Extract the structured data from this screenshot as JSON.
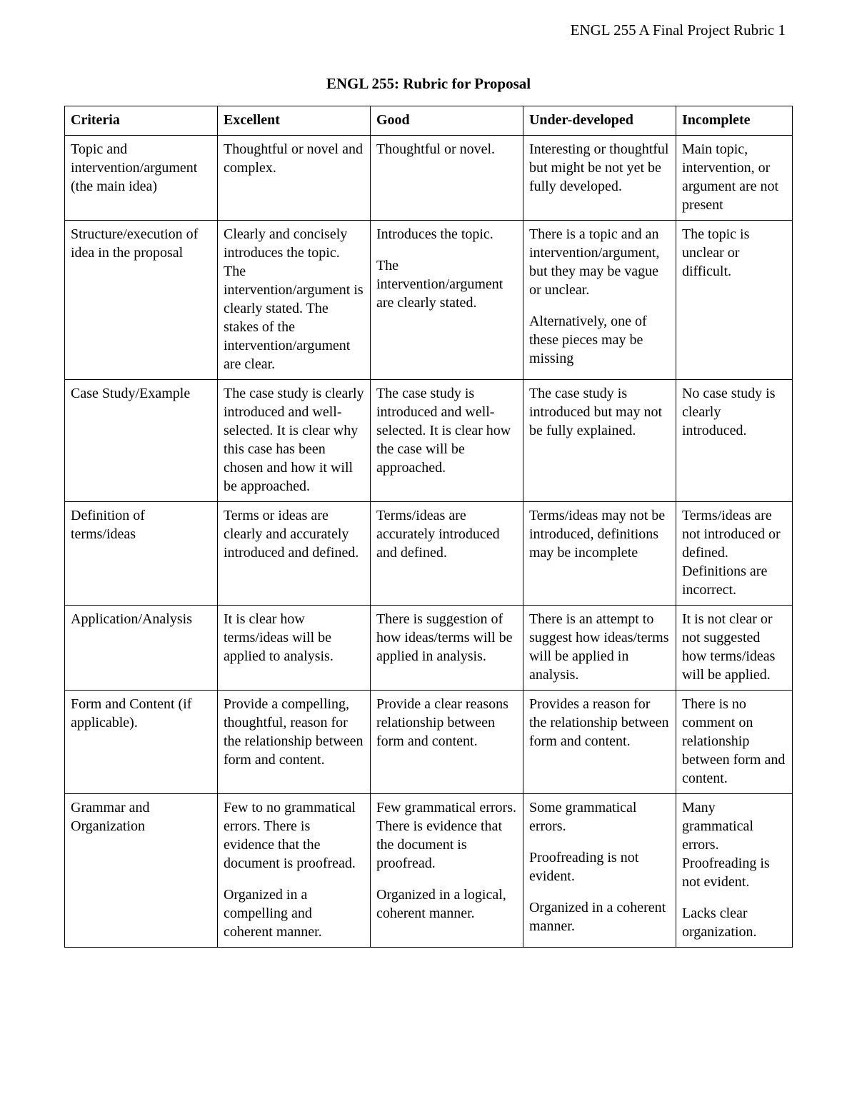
{
  "running_header": "ENGL 255 A Final Project Rubric 1",
  "title": "ENGL 255: Rubric for Proposal",
  "columns": [
    "Criteria",
    "Excellent",
    "Good",
    "Under-developed",
    "Incomplete"
  ],
  "rows": [
    {
      "criteria": [
        "Topic and intervention/argument (the main idea)"
      ],
      "excellent": [
        "Thoughtful or novel and complex."
      ],
      "good": [
        "Thoughtful or novel."
      ],
      "under": [
        "Interesting or thoughtful but might be not yet be fully developed."
      ],
      "incomplete": [
        "Main topic, intervention, or argument are not present"
      ]
    },
    {
      "criteria": [
        "Structure/execution of idea in the proposal"
      ],
      "excellent": [
        "Clearly and concisely introduces the topic. The intervention/argument is clearly stated. The stakes of the intervention/argument are clear."
      ],
      "good": [
        "Introduces the topic.",
        "The intervention/argument are clearly stated."
      ],
      "under": [
        "There is a topic and an intervention/argument, but they may be vague or unclear.",
        "Alternatively, one of these pieces may be missing"
      ],
      "incomplete": [
        "The topic is unclear or difficult."
      ]
    },
    {
      "criteria": [
        "Case Study/Example"
      ],
      "excellent": [
        "The case study is clearly introduced and well-selected. It is clear why this case has been chosen and how it will be approached."
      ],
      "good": [
        "The case study is introduced and well-selected. It is clear how the case will be approached."
      ],
      "under": [
        "The case study is introduced but may not be fully explained."
      ],
      "incomplete": [
        "No case study is clearly introduced."
      ]
    },
    {
      "criteria": [
        "Definition of terms/ideas"
      ],
      "excellent": [
        "Terms or ideas are clearly and accurately introduced and defined."
      ],
      "good": [
        "Terms/ideas are accurately introduced and defined."
      ],
      "under": [
        "Terms/ideas may not be introduced, definitions may be incomplete"
      ],
      "incomplete": [
        "Terms/ideas are not introduced or defined. Definitions are incorrect."
      ]
    },
    {
      "criteria": [
        "Application/Analysis"
      ],
      "excellent": [
        "It is clear how terms/ideas will be applied to analysis."
      ],
      "good": [
        "There is suggestion of how ideas/terms will be applied in analysis."
      ],
      "under": [
        "There is an attempt to suggest how ideas/terms will be applied in analysis."
      ],
      "incomplete": [
        "It is not clear or not suggested how terms/ideas will be applied."
      ]
    },
    {
      "criteria": [
        "Form and Content (if applicable)."
      ],
      "excellent": [
        "Provide a compelling, thoughtful, reason for the relationship between form and content."
      ],
      "good": [
        "Provide a clear reasons relationship between form and content."
      ],
      "under": [
        "Provides a reason for the relationship between form and content."
      ],
      "incomplete": [
        "There is no comment on relationship between form and content."
      ]
    },
    {
      "criteria": [
        "Grammar and Organization"
      ],
      "excellent": [
        "Few to no grammatical errors. There is evidence that the document is proofread.",
        "Organized in a compelling and coherent manner."
      ],
      "good": [
        "Few grammatical errors. There is evidence that the document is proofread.",
        "Organized in a logical, coherent manner."
      ],
      "under": [
        "Some grammatical errors.",
        "Proofreading is not evident.",
        "Organized in a coherent manner."
      ],
      "incomplete": [
        "Many grammatical errors. Proofreading is not evident.",
        "Lacks clear organization."
      ]
    }
  ]
}
